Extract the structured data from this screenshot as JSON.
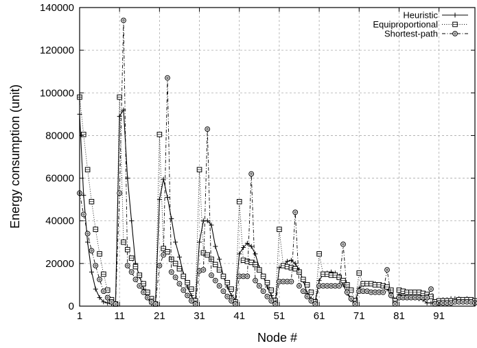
{
  "chart_data": {
    "type": "line",
    "title": "",
    "xlabel": "Node #",
    "ylabel": "Energy consumption (unit)",
    "xlim": [
      1,
      100
    ],
    "ylim": [
      0,
      140000
    ],
    "xticks": [
      1,
      11,
      21,
      31,
      41,
      51,
      61,
      71,
      81,
      91
    ],
    "yticks": [
      0,
      20000,
      40000,
      60000,
      80000,
      100000,
      120000,
      140000
    ],
    "grid": true,
    "legend_position": "top-right",
    "series": [
      {
        "name": "Heuristic",
        "marker": "plus",
        "line": "solid",
        "x": [
          1,
          2,
          3,
          4,
          5,
          6,
          7,
          8,
          9,
          10,
          11,
          12,
          13,
          14,
          15,
          16,
          17,
          18,
          19,
          20,
          21,
          22,
          23,
          24,
          25,
          26,
          27,
          28,
          29,
          30,
          31,
          32,
          33,
          34,
          35,
          36,
          37,
          38,
          39,
          40,
          41,
          42,
          43,
          44,
          45,
          46,
          47,
          48,
          49,
          50,
          51,
          52,
          53,
          54,
          55,
          56,
          57,
          58,
          59,
          60,
          61,
          62,
          63,
          64,
          65,
          66,
          67,
          68,
          69,
          70,
          71,
          72,
          73,
          74,
          75,
          76,
          77,
          78,
          79,
          80,
          81,
          82,
          83,
          84,
          85,
          86,
          87,
          88,
          89,
          90,
          91,
          92,
          93,
          94,
          95,
          96,
          97,
          98,
          99,
          100
        ],
        "y": [
          90000,
          52000,
          30000,
          16000,
          8000,
          4000,
          2000,
          1500,
          1000,
          1500,
          89000,
          92000,
          60000,
          40000,
          20000,
          14000,
          8000,
          4000,
          1000,
          1000,
          50000,
          59500,
          51000,
          41000,
          30000,
          23000,
          15000,
          9000,
          5000,
          2000,
          30000,
          40000,
          40000,
          38000,
          28000,
          22000,
          14000,
          9000,
          5000,
          3000,
          24500,
          27500,
          29500,
          28000,
          24500,
          18000,
          14000,
          9000,
          5000,
          2000,
          18000,
          19000,
          21000,
          21500,
          20000,
          17000,
          12000,
          6000,
          3500,
          2000,
          12000,
          15000,
          15500,
          16000,
          15500,
          14000,
          10000,
          6000,
          3000,
          2000,
          8500,
          10000,
          10500,
          10500,
          10500,
          10000,
          9500,
          8000,
          6000,
          3000,
          5500,
          5000,
          4500,
          4500,
          4000,
          3500,
          3000,
          1500,
          1500,
          1200,
          2500,
          3000,
          3000,
          3500,
          3500,
          3500,
          3000,
          3500,
          3000,
          2500
        ]
      },
      {
        "name": "Equiproportional",
        "marker": "square",
        "line": "dotted",
        "x": [
          1,
          2,
          3,
          4,
          5,
          6,
          7,
          8,
          9,
          10,
          11,
          12,
          13,
          14,
          15,
          16,
          17,
          18,
          19,
          20,
          21,
          22,
          23,
          24,
          25,
          26,
          27,
          28,
          29,
          30,
          31,
          32,
          33,
          34,
          35,
          36,
          37,
          38,
          39,
          40,
          41,
          42,
          43,
          44,
          45,
          46,
          47,
          48,
          49,
          50,
          51,
          52,
          53,
          54,
          55,
          56,
          57,
          58,
          59,
          60,
          61,
          62,
          63,
          64,
          65,
          66,
          67,
          68,
          69,
          70,
          71,
          72,
          73,
          74,
          75,
          76,
          77,
          78,
          79,
          80,
          81,
          82,
          83,
          84,
          85,
          86,
          87,
          88,
          89,
          90,
          91,
          92,
          93,
          94,
          95,
          96,
          97,
          98,
          99,
          100
        ],
        "y": [
          98000,
          80500,
          64000,
          49000,
          36000,
          24500,
          15000,
          7500,
          3000,
          1000,
          98000,
          30000,
          26500,
          22500,
          18500,
          14500,
          10500,
          6500,
          3500,
          1000,
          80500,
          27000,
          25500,
          22000,
          20000,
          17500,
          14000,
          11000,
          8000,
          2500,
          64000,
          25000,
          24000,
          22000,
          19500,
          17000,
          14000,
          11000,
          8000,
          2000,
          49000,
          21500,
          21000,
          20500,
          19500,
          17000,
          14000,
          11000,
          7500,
          2500,
          36000,
          19000,
          18500,
          18000,
          17500,
          16000,
          12500,
          10000,
          6500,
          2000,
          24500,
          15000,
          15000,
          14500,
          14500,
          13500,
          12000,
          10000,
          7500,
          2500,
          15500,
          10500,
          10500,
          10500,
          10000,
          10000,
          9500,
          9000,
          7500,
          2500,
          7500,
          7000,
          6500,
          6500,
          6500,
          6500,
          6000,
          5500,
          4500,
          2000,
          2500,
          2500,
          2500,
          2500,
          2500,
          3000,
          3000,
          3000,
          3000,
          2500
        ]
      },
      {
        "name": "Shortest-path",
        "marker": "circle",
        "line": "dashdot",
        "x": [
          1,
          2,
          3,
          4,
          5,
          6,
          7,
          8,
          9,
          10,
          11,
          12,
          13,
          14,
          15,
          16,
          17,
          18,
          19,
          20,
          21,
          22,
          23,
          24,
          25,
          26,
          27,
          28,
          29,
          30,
          31,
          32,
          33,
          34,
          35,
          36,
          37,
          38,
          39,
          40,
          41,
          42,
          43,
          44,
          45,
          46,
          47,
          48,
          49,
          50,
          51,
          52,
          53,
          54,
          55,
          56,
          57,
          58,
          59,
          60,
          61,
          62,
          63,
          64,
          65,
          66,
          67,
          68,
          69,
          70,
          71,
          72,
          73,
          74,
          75,
          76,
          77,
          78,
          79,
          80,
          81,
          82,
          83,
          84,
          85,
          86,
          87,
          88,
          89,
          90,
          91,
          92,
          93,
          94,
          95,
          96,
          97,
          98,
          99,
          100
        ],
        "y": [
          53000,
          43000,
          34000,
          26000,
          19000,
          12500,
          7000,
          4000,
          2000,
          1000,
          53000,
          134000,
          19000,
          16000,
          12500,
          9500,
          6500,
          4000,
          2000,
          1000,
          19000,
          24000,
          107000,
          16000,
          13500,
          10500,
          7500,
          5000,
          2500,
          1000,
          16500,
          17000,
          83000,
          14500,
          12000,
          9500,
          7000,
          4500,
          2500,
          1000,
          14000,
          14000,
          14000,
          62000,
          12000,
          9500,
          7000,
          4500,
          2500,
          1000,
          11500,
          11500,
          11500,
          11500,
          44000,
          9500,
          7000,
          4500,
          2500,
          1000,
          9500,
          9500,
          9500,
          9500,
          9500,
          9500,
          29000,
          6500,
          3500,
          1000,
          7000,
          7000,
          7000,
          6500,
          6500,
          6500,
          6500,
          17000,
          5000,
          1000,
          4000,
          4000,
          4000,
          4000,
          4000,
          4000,
          4000,
          4000,
          8000,
          1000,
          1500,
          1500,
          1500,
          1500,
          2000,
          2000,
          2000,
          2000,
          2000,
          1500
        ]
      }
    ]
  }
}
